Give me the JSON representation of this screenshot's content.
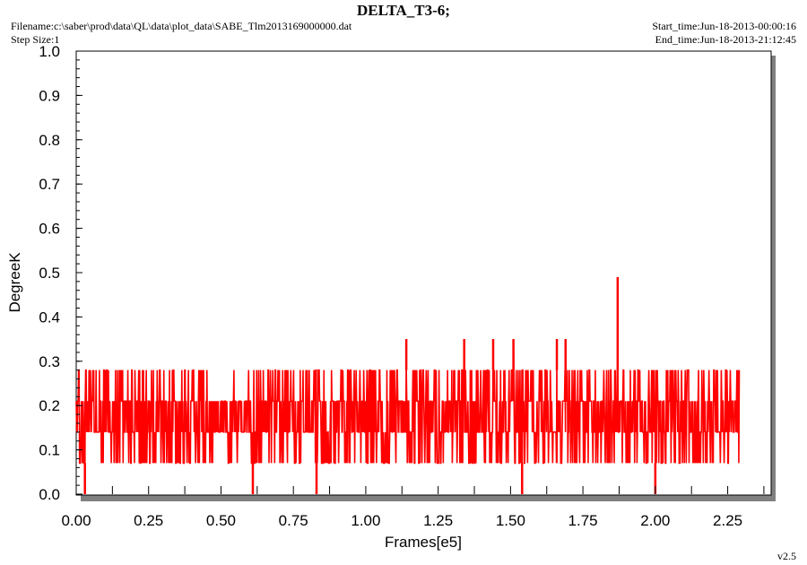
{
  "header": {
    "title": "DELTA_T3-6;",
    "filename": "Filename:c:\\saber\\prod\\data\\QL\\data\\plot_data\\SABE_Tlm2013169000000.dat",
    "step_size": "Step Size:1",
    "start_time": "Start_time:Jun-18-2013-00:00:16",
    "end_time": "End_time:Jun-18-2013-21:12:45"
  },
  "version": "v2.5",
  "colors": {
    "series": "#ff0000",
    "axis": "#000000",
    "shadow": "#808080"
  },
  "chart_data": {
    "type": "line",
    "title": "DELTA_T3-6;",
    "xlabel": "Frames[e5]",
    "ylabel": "DegreeK",
    "xlim": [
      0.0,
      2.4
    ],
    "ylim": [
      0.0,
      1.0
    ],
    "x_ticks": [
      "0.00",
      "0.25",
      "0.50",
      "0.75",
      "1.00",
      "1.25",
      "1.50",
      "1.75",
      "2.00",
      "2.25"
    ],
    "y_ticks": [
      "0.0",
      "0.1",
      "0.2",
      "0.3",
      "0.4",
      "0.5",
      "0.6",
      "0.7",
      "0.8",
      "0.9",
      "1.0"
    ],
    "grid": false,
    "series": [
      {
        "color": "#ff0000",
        "x_range": [
          0.0,
          2.29
        ],
        "levels": [
          0.07,
          0.14,
          0.21,
          0.28
        ],
        "typical_min": 0.07,
        "typical_max": 0.28,
        "spikes": [
          {
            "x": 1.14,
            "y": 0.35
          },
          {
            "x": 1.34,
            "y": 0.35
          },
          {
            "x": 1.44,
            "y": 0.35
          },
          {
            "x": 1.51,
            "y": 0.35
          },
          {
            "x": 1.66,
            "y": 0.35
          },
          {
            "x": 1.69,
            "y": 0.35
          },
          {
            "x": 1.87,
            "y": 0.49
          }
        ],
        "dips": [
          {
            "x": 0.03,
            "y": 0.0
          },
          {
            "x": 0.61,
            "y": 0.0
          },
          {
            "x": 0.83,
            "y": 0.0
          },
          {
            "x": 1.54,
            "y": 0.0
          },
          {
            "x": 2.0,
            "y": 0.0
          }
        ],
        "gaps": [
          [
            0.475,
            0.525
          ],
          [
            0.56,
            0.585
          ],
          [
            1.11,
            1.14
          ]
        ]
      }
    ]
  }
}
